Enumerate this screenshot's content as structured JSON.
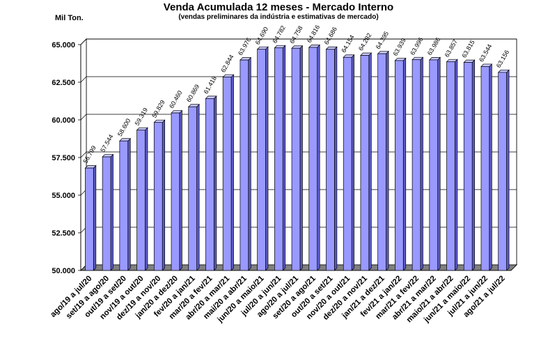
{
  "chart_data": {
    "type": "bar",
    "title": "Venda Acumulada 12 meses -  Mercado Interno",
    "subtitle": "(vendas preliminares da indústria e estimativas de mercado)",
    "ylabel": "Mil Ton.",
    "xlabel": "",
    "ylim": [
      50000,
      65000
    ],
    "yticks": [
      "50.000",
      "52.500",
      "55.000",
      "57.500",
      "60.000",
      "62.500",
      "65.000"
    ],
    "ytick_values": [
      50000,
      52500,
      55000,
      57500,
      60000,
      62500,
      65000
    ],
    "grid": true,
    "legend": "none",
    "bar_color": "#9999ff",
    "categories": [
      "ago/19 a jul/20",
      "set/19 a ago/20",
      "out/19 a set/20",
      "nov/19 a out/20",
      "dez/19 a nov/20",
      "jan/20 a dez/20",
      "fev/20 a jan/21",
      "mar/20 a fev/21",
      "abr/20 a mar/21",
      "mai/20 a abr/21",
      "jun/20 a maio/21",
      "jul/20 a jun/21",
      "ago/20 a jul/21",
      "set/20 a ago/21",
      "out/20 a set/21",
      "nov/20 a out/21",
      "dez/20 a nov/21",
      "jan/21 a dez/21",
      "fev/21 a jan/22",
      "mar/21 a fev/22",
      "abr/21 a mar/22",
      "maio/21 a abr/22",
      "jun/21 a maio/22",
      "jul/21 a jun/22",
      "ago/21 a jul/22"
    ],
    "values": [
      56799,
      57544,
      58600,
      59319,
      59829,
      60460,
      60869,
      61418,
      62844,
      63976,
      64690,
      64782,
      64758,
      64816,
      64686,
      64154,
      64282,
      64395,
      63939,
      63996,
      63986,
      63857,
      63815,
      63544,
      63156
    ],
    "data_labels": [
      "56.799",
      "57.544",
      "58.600",
      "59.319",
      "59.829",
      "60.460",
      "60.869",
      "61.418",
      "62.844",
      "63.976",
      "64.690",
      "64.782",
      "64.758",
      "64.816",
      "64.686",
      "64.154",
      "64.282",
      "64.395",
      "63.939",
      "63.996",
      "63.986",
      "63.857",
      "63.815",
      "63.544",
      "63.156"
    ]
  }
}
